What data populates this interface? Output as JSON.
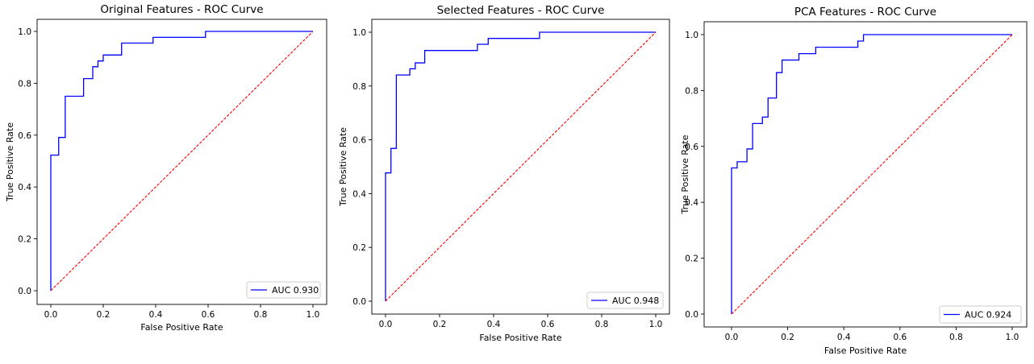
{
  "colors": {
    "roc": "#0000ff",
    "diagonal": "#ff0000",
    "axes": "#000000",
    "legend_border": "#cccccc"
  },
  "chart_data": [
    {
      "type": "line",
      "title": "Original Features - ROC Curve",
      "xlabel": "False Positive Rate",
      "ylabel": "True Positive Rate",
      "xlim": [
        0,
        1
      ],
      "ylim": [
        0,
        1
      ],
      "xticks": [
        "0.0",
        "0.2",
        "0.4",
        "0.6",
        "0.8",
        "1.0"
      ],
      "yticks": [
        "0.0",
        "0.2",
        "0.4",
        "0.6",
        "0.8",
        "1.0"
      ],
      "grid": false,
      "legend": "lower right",
      "series": [
        {
          "name": "AUC 0.930",
          "style": "solid",
          "color": "blue",
          "x": [
            0.0,
            0.0,
            0.03,
            0.03,
            0.055,
            0.055,
            0.125,
            0.125,
            0.16,
            0.16,
            0.18,
            0.18,
            0.2,
            0.2,
            0.27,
            0.27,
            0.39,
            0.39,
            0.59,
            0.59,
            1.0
          ],
          "y": [
            0.0,
            0.523,
            0.523,
            0.591,
            0.591,
            0.75,
            0.75,
            0.818,
            0.818,
            0.864,
            0.864,
            0.886,
            0.886,
            0.909,
            0.909,
            0.955,
            0.955,
            0.977,
            0.977,
            1.0,
            1.0
          ]
        },
        {
          "style": "dashed",
          "color": "red",
          "x": [
            0,
            1
          ],
          "y": [
            0,
            1
          ]
        }
      ]
    },
    {
      "type": "line",
      "title": "Selected Features - ROC Curve",
      "xlabel": "False Positive Rate",
      "ylabel": "True Positive Rate",
      "xlim": [
        0,
        1
      ],
      "ylim": [
        0,
        1
      ],
      "xticks": [
        "0.0",
        "0.2",
        "0.4",
        "0.6",
        "0.8",
        "1.0"
      ],
      "yticks": [
        "0.0",
        "0.2",
        "0.4",
        "0.6",
        "0.8",
        "1.0"
      ],
      "grid": false,
      "legend": "lower right",
      "series": [
        {
          "name": "AUC 0.948",
          "style": "solid",
          "color": "blue",
          "x": [
            0.0,
            0.0,
            0.02,
            0.02,
            0.04,
            0.04,
            0.09,
            0.09,
            0.11,
            0.11,
            0.145,
            0.145,
            0.34,
            0.34,
            0.38,
            0.38,
            0.57,
            0.57,
            1.0
          ],
          "y": [
            0.0,
            0.477,
            0.477,
            0.568,
            0.568,
            0.841,
            0.841,
            0.864,
            0.864,
            0.886,
            0.886,
            0.932,
            0.932,
            0.955,
            0.955,
            0.977,
            0.977,
            1.0,
            1.0
          ]
        },
        {
          "style": "dashed",
          "color": "red",
          "x": [
            0,
            1
          ],
          "y": [
            0,
            1
          ]
        }
      ]
    },
    {
      "type": "line",
      "title": "PCA Features - ROC Curve",
      "xlabel": "False Positive Rate",
      "ylabel": "True Positive Rate",
      "xlim": [
        0,
        1
      ],
      "ylim": [
        0,
        1
      ],
      "xticks": [
        "0.0",
        "0.2",
        "0.4",
        "0.6",
        "0.8",
        "1.0"
      ],
      "yticks": [
        "0.0",
        "0.2",
        "0.4",
        "0.6",
        "0.8",
        "1.0"
      ],
      "grid": false,
      "legend": "lower right",
      "series": [
        {
          "name": "AUC 0.924",
          "style": "solid",
          "color": "blue",
          "x": [
            0.0,
            0.0,
            0.02,
            0.02,
            0.055,
            0.055,
            0.075,
            0.075,
            0.11,
            0.11,
            0.13,
            0.13,
            0.16,
            0.16,
            0.18,
            0.18,
            0.24,
            0.24,
            0.3,
            0.3,
            0.45,
            0.45,
            0.47,
            0.47,
            1.0
          ],
          "y": [
            0.0,
            0.523,
            0.523,
            0.545,
            0.545,
            0.591,
            0.591,
            0.682,
            0.682,
            0.705,
            0.705,
            0.773,
            0.773,
            0.864,
            0.864,
            0.909,
            0.909,
            0.932,
            0.932,
            0.955,
            0.955,
            0.977,
            0.977,
            1.0,
            1.0
          ]
        },
        {
          "style": "dashed",
          "color": "red",
          "x": [
            0,
            1
          ],
          "y": [
            0,
            1
          ]
        }
      ]
    }
  ]
}
